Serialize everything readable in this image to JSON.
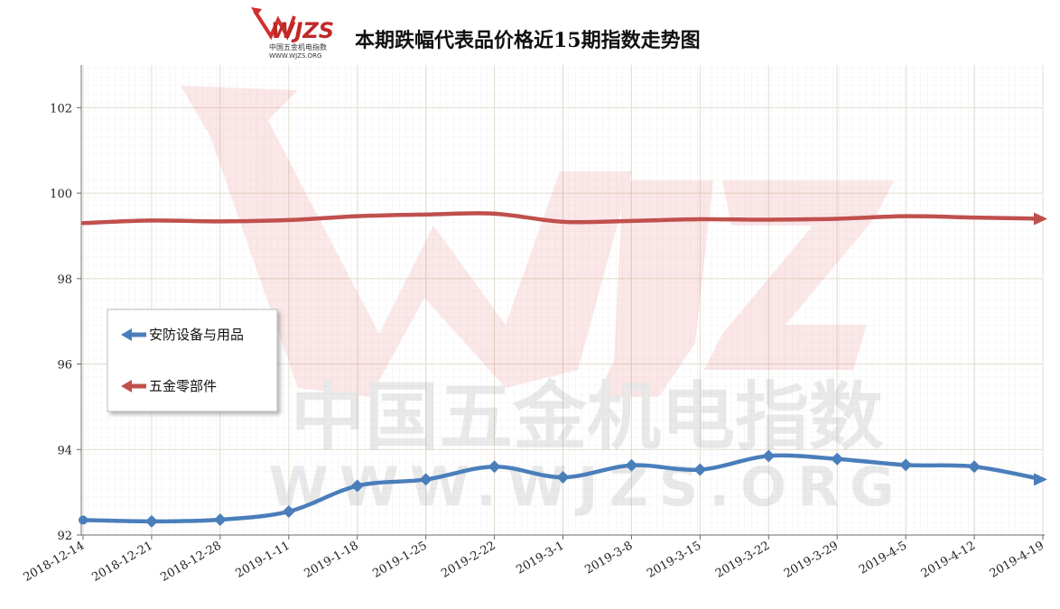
{
  "chart_data": {
    "type": "line",
    "title": "本期跌幅代表品价格近15期指数走势图",
    "categories": [
      "2018-12-14",
      "2018-12-21",
      "2018-12-28",
      "2019-1-11",
      "2019-1-18",
      "2019-1-25",
      "2019-2-22",
      "2019-3-1",
      "2019-3-8",
      "2019-3-15",
      "2019-3-22",
      "2019-3-29",
      "2019-4-5",
      "2019-4-12",
      "2019-4-19"
    ],
    "ylim": [
      92,
      103
    ],
    "yticks": [
      92,
      94,
      96,
      98,
      100,
      102
    ],
    "grid": true,
    "legend_position": "left",
    "series": [
      {
        "name": "安防设备与用品",
        "color": "#4a7ebb",
        "values": [
          92.35,
          92.32,
          92.36,
          92.55,
          93.15,
          93.3,
          93.6,
          93.35,
          93.63,
          93.53,
          93.85,
          93.78,
          93.64,
          93.6,
          93.3
        ]
      },
      {
        "name": "五金零部件",
        "color": "#c0504d",
        "values": [
          99.3,
          99.36,
          99.34,
          99.37,
          99.46,
          99.5,
          99.52,
          99.33,
          99.35,
          99.39,
          99.38,
          99.4,
          99.46,
          99.43,
          99.4
        ]
      }
    ]
  },
  "logo": {
    "text": "WJZS",
    "subtitle": "中国五金机电指数",
    "url": "WWW.WJZS.ORG"
  },
  "watermark": {
    "line1": "中国五金机电指数",
    "line2": "WWW.WJZS.ORG"
  }
}
